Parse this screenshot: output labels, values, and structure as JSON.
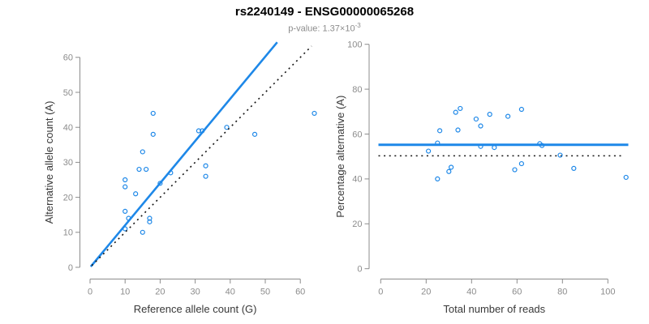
{
  "header": {
    "title": "rs2240149 - ENSG00000065268",
    "subtitle_prefix": "p-value: 1.37×10",
    "subtitle_exponent": "-3"
  },
  "colors": {
    "accent_blue": "#1E88E8",
    "axis_gray": "#8C8C8C",
    "label_dark": "#383838",
    "dotted_black": "#141414",
    "background": "#FFFFFF"
  },
  "chart_data": [
    {
      "type": "scatter",
      "xlabel": "Reference allele count (G)",
      "ylabel": "Alternative allele count (A)",
      "xticks": [
        0,
        10,
        20,
        30,
        40,
        50,
        60
      ],
      "yticks": [
        0,
        10,
        20,
        30,
        40,
        50,
        60
      ],
      "xlim": [
        0,
        64
      ],
      "ylim": [
        0,
        64
      ],
      "grid": false,
      "legend": null,
      "points": [
        [
          10,
          11
        ],
        [
          10,
          16
        ],
        [
          10,
          23
        ],
        [
          10,
          25
        ],
        [
          11,
          14
        ],
        [
          13,
          21
        ],
        [
          14,
          28
        ],
        [
          15,
          10
        ],
        [
          15,
          33
        ],
        [
          16,
          28
        ],
        [
          17,
          13
        ],
        [
          17,
          14
        ],
        [
          18,
          38
        ],
        [
          18,
          44
        ],
        [
          20,
          24
        ],
        [
          23,
          27
        ],
        [
          31,
          39
        ],
        [
          32,
          39
        ],
        [
          33,
          26
        ],
        [
          33,
          29
        ],
        [
          39,
          40
        ],
        [
          47,
          38
        ],
        [
          64,
          44
        ]
      ],
      "lines": [
        {
          "name": "regression-line",
          "style": "solid",
          "color": "#1E88E8",
          "width": 2.6,
          "x1": 0.2,
          "y1": 0.2,
          "x2": 53.4,
          "y2": 64.3
        },
        {
          "name": "identity-line",
          "style": "dotted",
          "color": "#141414",
          "width": 1.6,
          "x1": 0.5,
          "y1": 0.5,
          "x2": 63.2,
          "y2": 63.2
        }
      ]
    },
    {
      "type": "scatter",
      "xlabel": "Total number of reads",
      "ylabel": "Percentage alternative (A)",
      "xticks": [
        0,
        20,
        40,
        60,
        80,
        100
      ],
      "yticks": [
        0,
        20,
        40,
        60,
        80,
        100
      ],
      "xlim": [
        -1,
        109
      ],
      "ylim": [
        0,
        100
      ],
      "grid": false,
      "legend": null,
      "points": [
        [
          21,
          52.4
        ],
        [
          25,
          40
        ],
        [
          25,
          56
        ],
        [
          26,
          61.5
        ],
        [
          30,
          43.3
        ],
        [
          31,
          45.2
        ],
        [
          33,
          69.7
        ],
        [
          34,
          61.8
        ],
        [
          35,
          71.4
        ],
        [
          42,
          66.7
        ],
        [
          44,
          54.5
        ],
        [
          44,
          63.6
        ],
        [
          48,
          68.8
        ],
        [
          50,
          54
        ],
        [
          56,
          67.9
        ],
        [
          59,
          44.1
        ],
        [
          62,
          46.8
        ],
        [
          62,
          71
        ],
        [
          70,
          55.7
        ],
        [
          71,
          54.9
        ],
        [
          79,
          50.6
        ],
        [
          85,
          44.7
        ],
        [
          108,
          40.7
        ]
      ],
      "lines": [
        {
          "name": "mean-line",
          "style": "solid",
          "color": "#1E88E8",
          "width": 3,
          "x1": -1,
          "y1": 55.2,
          "x2": 109,
          "y2": 55.2
        },
        {
          "name": "null-line",
          "style": "dotted",
          "color": "#141414",
          "width": 1.6,
          "x1": -1,
          "y1": 50.3,
          "x2": 106.5,
          "y2": 50.3
        }
      ]
    }
  ]
}
